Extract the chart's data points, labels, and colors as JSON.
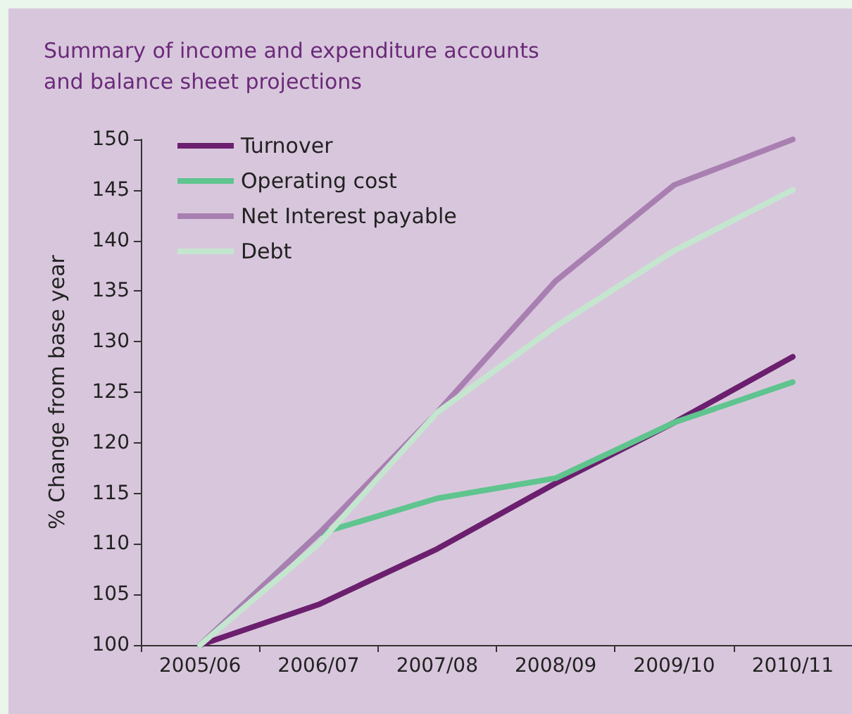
{
  "chart_data": {
    "type": "line",
    "title": "Summary of income and expenditure accounts\nand balance sheet projections",
    "ylabel": "% Change from base year",
    "categories": [
      "2005/06",
      "2006/07",
      "2007/08",
      "2008/09",
      "2009/10",
      "2010/11"
    ],
    "series": [
      {
        "name": "Turnover",
        "color": "#6b1f6e",
        "values": [
          100,
          104,
          109.5,
          116,
          122,
          128.5
        ]
      },
      {
        "name": "Operating cost",
        "color": "#5fc48e",
        "values": [
          100,
          111,
          114.5,
          116.5,
          122,
          126
        ]
      },
      {
        "name": "Net Interest payable",
        "color": "#a97fb2",
        "values": [
          100,
          111,
          123,
          136,
          145.5,
          150
        ]
      },
      {
        "name": "Debt",
        "color": "#c4e6cf",
        "values": [
          100,
          110,
          123,
          131.5,
          139,
          145
        ]
      }
    ],
    "ylim": [
      100,
      150
    ],
    "yticks": [
      100,
      105,
      110,
      115,
      120,
      125,
      130,
      135,
      140,
      145,
      150
    ],
    "grid": false,
    "legend": "top left",
    "marker": "none",
    "line_style": "solid"
  }
}
